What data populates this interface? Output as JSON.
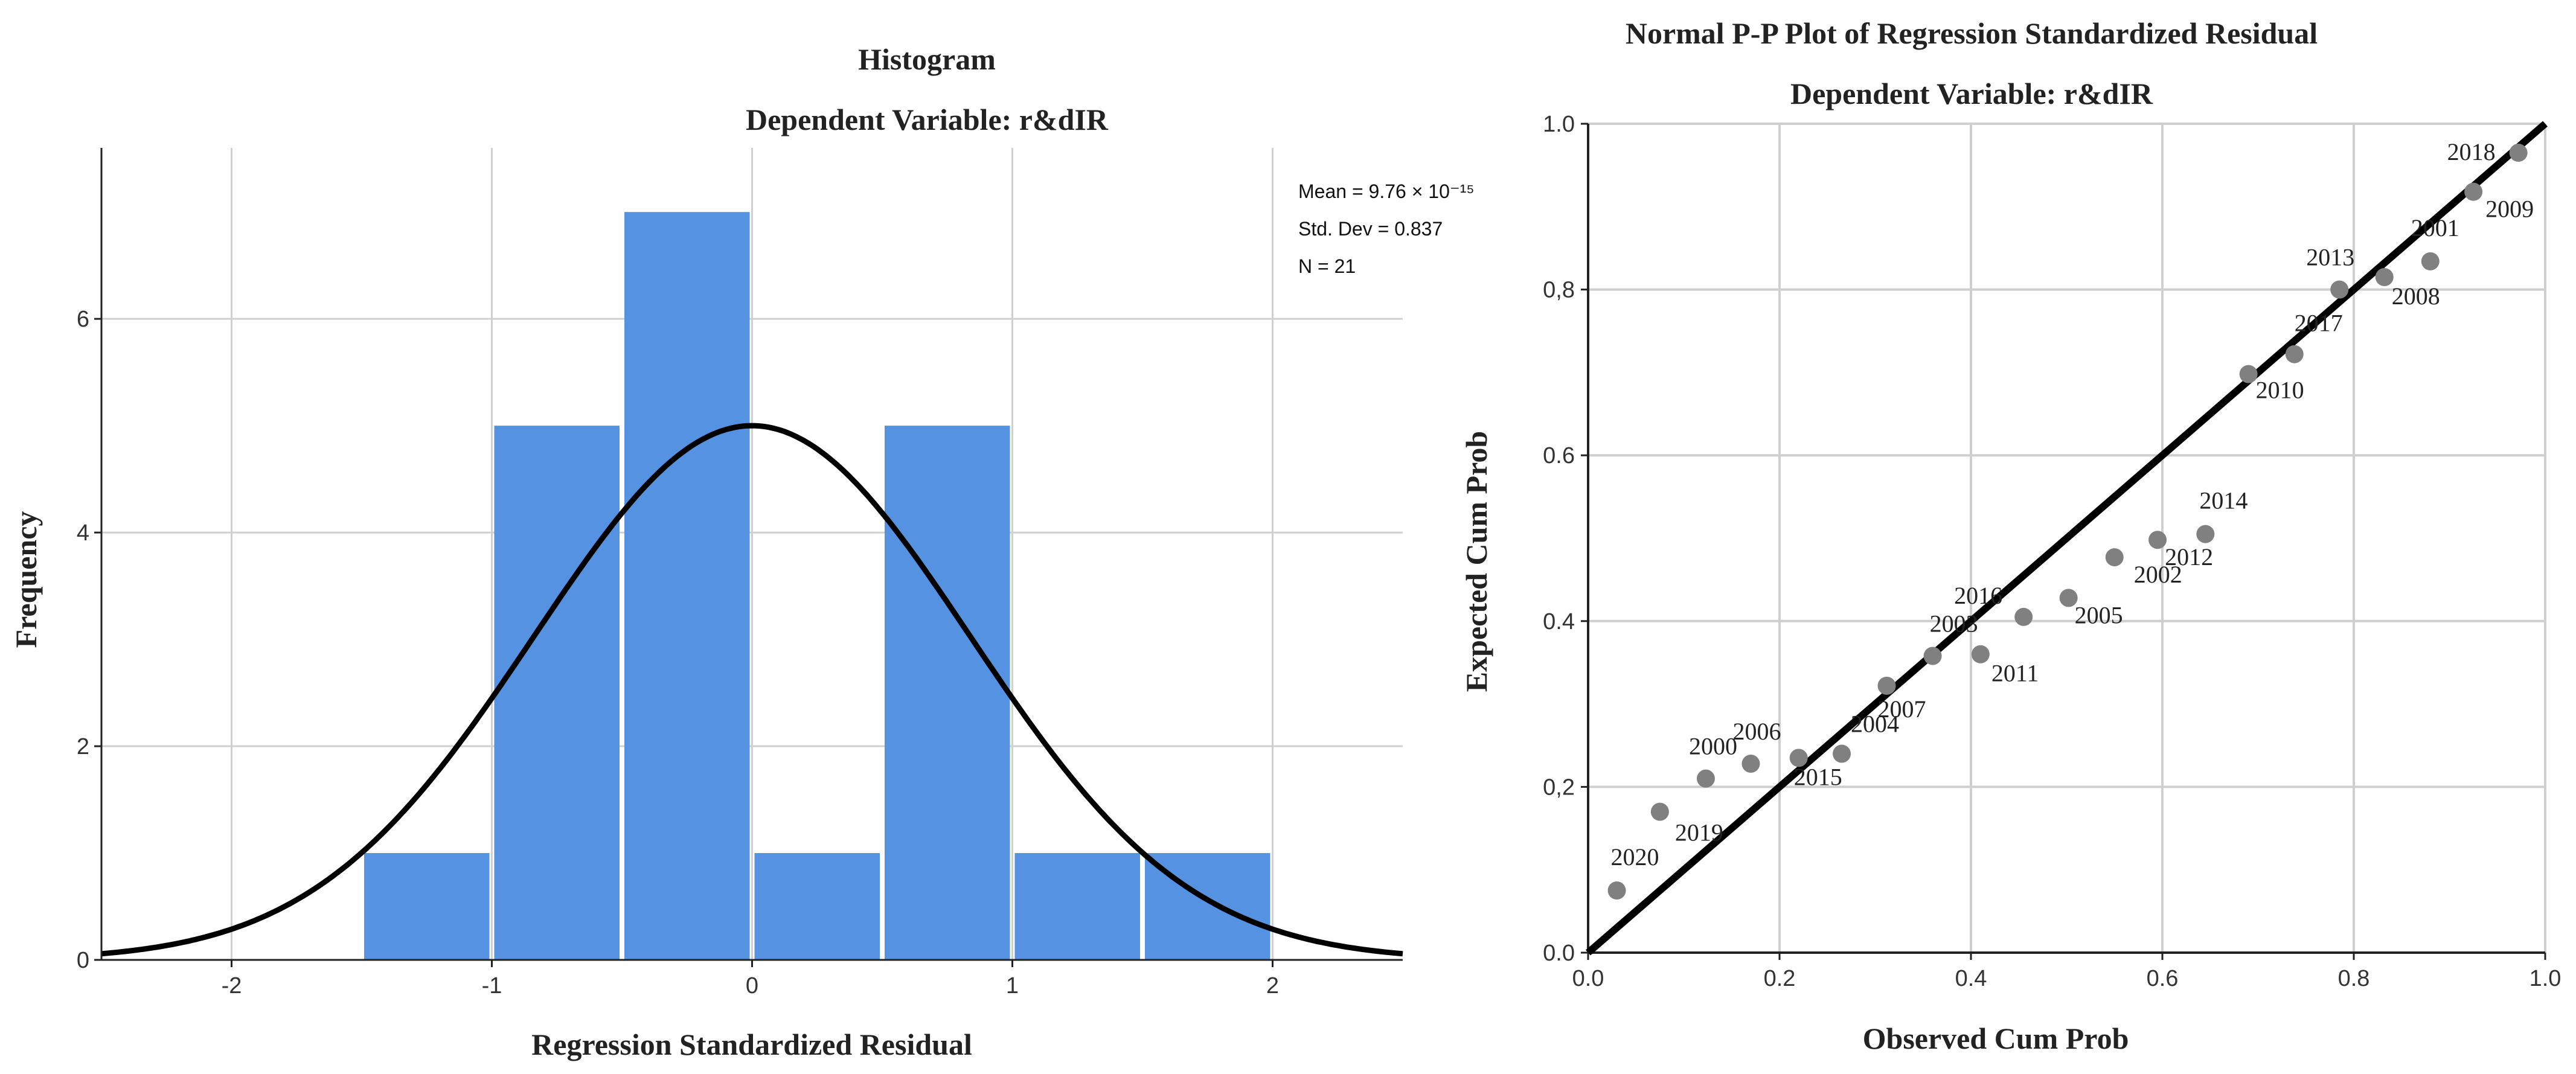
{
  "chart_data": [
    {
      "type": "bar",
      "title": "Histogram",
      "subtitle": "Dependent Variable: r&dIR",
      "xlabel": "Regression Standardized Residual",
      "ylabel": "Frequency",
      "xlim": [
        -2.5,
        2.5
      ],
      "ylim": [
        0,
        7.6
      ],
      "xticks": [
        -2,
        -1,
        0,
        1,
        2
      ],
      "yticks": [
        0,
        2,
        4,
        6
      ],
      "bins": [
        {
          "start": -1.5,
          "end": -1.0,
          "count": 1
        },
        {
          "start": -1.0,
          "end": -0.5,
          "count": 5
        },
        {
          "start": -0.5,
          "end": 0.0,
          "count": 7
        },
        {
          "start": 0.0,
          "end": 0.5,
          "count": 1
        },
        {
          "start": 0.5,
          "end": 1.0,
          "count": 5
        },
        {
          "start": 1.0,
          "end": 1.5,
          "count": 1
        },
        {
          "start": 1.5,
          "end": 2.0,
          "count": 1
        }
      ],
      "normal_curve": {
        "mean": 0.0,
        "std": 0.837,
        "peak": 5.0
      },
      "stats": {
        "mean_label": "Mean = 9.76 × 10⁻¹⁵",
        "std_label": "Std. Dev = 0.837",
        "n_label": "N = 21"
      },
      "bar_color": "#5592e2",
      "curve_color": "#000000"
    },
    {
      "type": "scatter",
      "title": "Normal P-P Plot of Regression Standardized Residual",
      "subtitle": "Dependent Variable: r&dIR",
      "xlabel": "Observed Cum Prob",
      "ylabel": "Expected Cum Prob",
      "xlim": [
        0,
        1
      ],
      "ylim": [
        0,
        1
      ],
      "xticks": [
        "0.0",
        "0.2",
        "0.4",
        "0.6",
        "0.8",
        "1.0"
      ],
      "yticks": [
        "0.0",
        "0,2",
        "0.4",
        "0.6",
        "0,8",
        "1.0"
      ],
      "reference_line": [
        [
          0,
          0
        ],
        [
          1,
          1
        ]
      ],
      "point_color": "#808080",
      "points": [
        {
          "label": "2020",
          "x": 0.03,
          "y": 0.075
        },
        {
          "label": "2019",
          "x": 0.075,
          "y": 0.17
        },
        {
          "label": "2000",
          "x": 0.123,
          "y": 0.21
        },
        {
          "label": "2006",
          "x": 0.17,
          "y": 0.228
        },
        {
          "label": "2015",
          "x": 0.22,
          "y": 0.235
        },
        {
          "label": "2004",
          "x": 0.265,
          "y": 0.24
        },
        {
          "label": "2007",
          "x": 0.312,
          "y": 0.322
        },
        {
          "label": "2003",
          "x": 0.36,
          "y": 0.358
        },
        {
          "label": "2011",
          "x": 0.41,
          "y": 0.36
        },
        {
          "label": "2016",
          "x": 0.455,
          "y": 0.405
        },
        {
          "label": "2005",
          "x": 0.502,
          "y": 0.428
        },
        {
          "label": "2002",
          "x": 0.55,
          "y": 0.477
        },
        {
          "label": "2012",
          "x": 0.595,
          "y": 0.498
        },
        {
          "label": "2014",
          "x": 0.645,
          "y": 0.505
        },
        {
          "label": "2010",
          "x": 0.69,
          "y": 0.698
        },
        {
          "label": "2017",
          "x": 0.738,
          "y": 0.722
        },
        {
          "label": "2013",
          "x": 0.785,
          "y": 0.8
        },
        {
          "label": "2008",
          "x": 0.832,
          "y": 0.815
        },
        {
          "label": "2001",
          "x": 0.88,
          "y": 0.834
        },
        {
          "label": "2009",
          "x": 0.925,
          "y": 0.918
        },
        {
          "label": "2018",
          "x": 0.972,
          "y": 0.965
        }
      ]
    }
  ]
}
